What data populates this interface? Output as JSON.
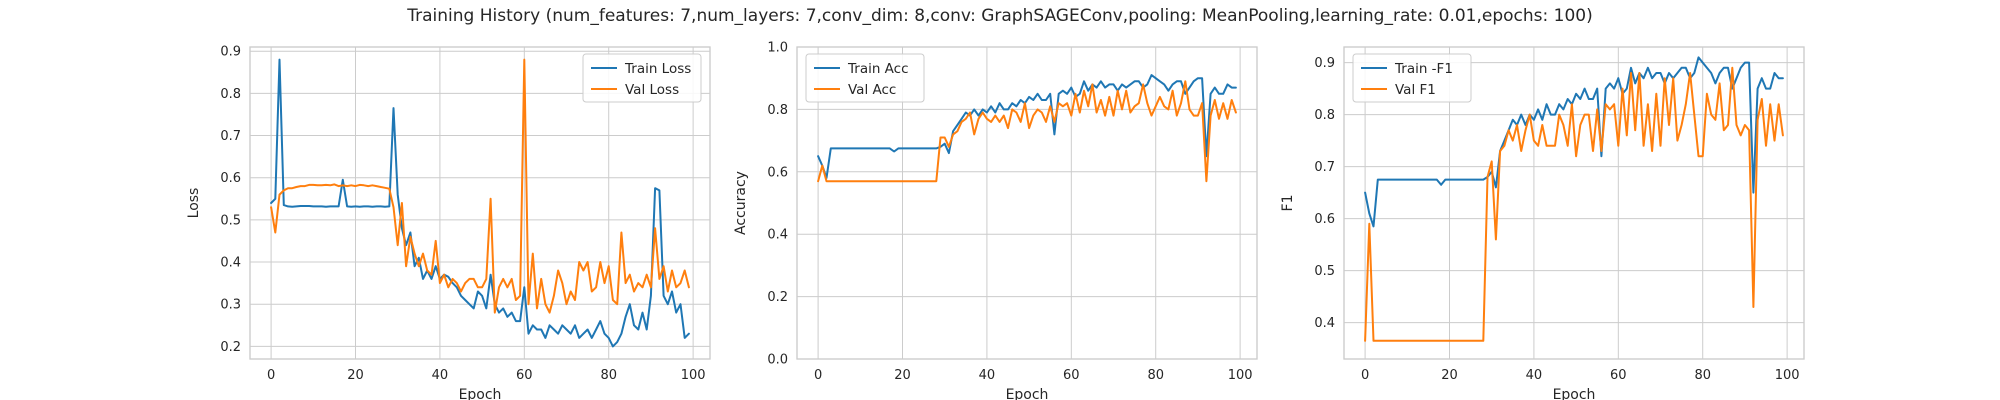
{
  "suptitle": "Training History (num_features: 7,num_layers: 7,conv_dim: 8,conv: GraphSAGEConv,pooling: MeanPooling,learning_rate: 0.01,epochs: 100)",
  "colors": {
    "blue": "#1f77b4",
    "orange": "#ff7f0e",
    "grid": "#cccccc"
  },
  "chart_data": [
    {
      "type": "line",
      "title": "",
      "xlabel": "Epoch",
      "ylabel": "Loss",
      "xlim": [
        -5,
        104
      ],
      "ylim": [
        0.17,
        0.91
      ],
      "xticks": [
        0,
        20,
        40,
        60,
        80,
        100
      ],
      "yticks": [
        0.2,
        0.3,
        0.4,
        0.5,
        0.6,
        0.7,
        0.8,
        0.9
      ],
      "tick_decimals": 1,
      "legend_loc": "upper right",
      "series": [
        {
          "name": "Train Loss",
          "color": "#1f77b4",
          "values": [
            0.54,
            0.55,
            0.88,
            0.535,
            0.532,
            0.531,
            0.532,
            0.533,
            0.533,
            0.533,
            0.532,
            0.532,
            0.532,
            0.531,
            0.532,
            0.532,
            0.532,
            0.595,
            0.532,
            0.531,
            0.532,
            0.531,
            0.532,
            0.532,
            0.531,
            0.532,
            0.532,
            0.531,
            0.532,
            0.765,
            0.56,
            0.48,
            0.44,
            0.47,
            0.39,
            0.41,
            0.36,
            0.38,
            0.36,
            0.39,
            0.36,
            0.37,
            0.365,
            0.35,
            0.34,
            0.32,
            0.31,
            0.3,
            0.29,
            0.33,
            0.32,
            0.29,
            0.37,
            0.3,
            0.28,
            0.29,
            0.27,
            0.28,
            0.26,
            0.26,
            0.34,
            0.23,
            0.25,
            0.24,
            0.24,
            0.22,
            0.25,
            0.24,
            0.23,
            0.25,
            0.24,
            0.23,
            0.25,
            0.22,
            0.23,
            0.24,
            0.22,
            0.24,
            0.26,
            0.23,
            0.22,
            0.2,
            0.21,
            0.23,
            0.27,
            0.3,
            0.25,
            0.24,
            0.28,
            0.24,
            0.32,
            0.575,
            0.57,
            0.32,
            0.3,
            0.33,
            0.28,
            0.3,
            0.22,
            0.23
          ]
        },
        {
          "name": "Val Loss",
          "color": "#ff7f0e",
          "values": [
            0.53,
            0.47,
            0.56,
            0.57,
            0.575,
            0.575,
            0.578,
            0.58,
            0.58,
            0.583,
            0.583,
            0.582,
            0.582,
            0.583,
            0.582,
            0.584,
            0.58,
            0.582,
            0.58,
            0.582,
            0.58,
            0.583,
            0.582,
            0.58,
            0.582,
            0.58,
            0.578,
            0.576,
            0.574,
            0.53,
            0.44,
            0.54,
            0.39,
            0.46,
            0.42,
            0.39,
            0.42,
            0.38,
            0.37,
            0.45,
            0.35,
            0.37,
            0.34,
            0.36,
            0.35,
            0.33,
            0.35,
            0.36,
            0.36,
            0.34,
            0.34,
            0.36,
            0.55,
            0.28,
            0.34,
            0.36,
            0.34,
            0.36,
            0.31,
            0.32,
            0.88,
            0.3,
            0.42,
            0.29,
            0.36,
            0.3,
            0.28,
            0.32,
            0.38,
            0.35,
            0.3,
            0.33,
            0.31,
            0.4,
            0.38,
            0.4,
            0.33,
            0.34,
            0.4,
            0.35,
            0.39,
            0.31,
            0.3,
            0.47,
            0.35,
            0.37,
            0.33,
            0.35,
            0.34,
            0.37,
            0.34,
            0.48,
            0.36,
            0.39,
            0.33,
            0.38,
            0.34,
            0.35,
            0.38,
            0.34
          ]
        }
      ]
    },
    {
      "type": "line",
      "title": "",
      "xlabel": "Epoch",
      "ylabel": "Accuracy",
      "xlim": [
        -5,
        104
      ],
      "ylim": [
        0.0,
        1.0
      ],
      "xticks": [
        0,
        20,
        40,
        60,
        80,
        100
      ],
      "yticks": [
        0.0,
        0.2,
        0.4,
        0.6,
        0.8,
        1.0
      ],
      "tick_decimals": 1,
      "legend_loc": "upper left",
      "series": [
        {
          "name": "Train Acc",
          "color": "#1f77b4",
          "values": [
            0.65,
            0.62,
            0.58,
            0.675,
            0.675,
            0.675,
            0.675,
            0.675,
            0.675,
            0.675,
            0.675,
            0.675,
            0.675,
            0.675,
            0.675,
            0.675,
            0.675,
            0.675,
            0.665,
            0.675,
            0.675,
            0.675,
            0.675,
            0.675,
            0.675,
            0.675,
            0.675,
            0.675,
            0.675,
            0.68,
            0.69,
            0.66,
            0.73,
            0.75,
            0.77,
            0.79,
            0.78,
            0.8,
            0.78,
            0.8,
            0.79,
            0.81,
            0.79,
            0.82,
            0.8,
            0.8,
            0.82,
            0.81,
            0.83,
            0.82,
            0.84,
            0.83,
            0.85,
            0.83,
            0.83,
            0.85,
            0.72,
            0.85,
            0.86,
            0.85,
            0.87,
            0.84,
            0.85,
            0.89,
            0.86,
            0.88,
            0.87,
            0.89,
            0.87,
            0.88,
            0.88,
            0.86,
            0.88,
            0.87,
            0.88,
            0.89,
            0.89,
            0.87,
            0.88,
            0.91,
            0.9,
            0.89,
            0.88,
            0.86,
            0.88,
            0.89,
            0.89,
            0.85,
            0.87,
            0.89,
            0.9,
            0.9,
            0.65,
            0.85,
            0.87,
            0.85,
            0.85,
            0.88,
            0.87,
            0.87
          ]
        },
        {
          "name": "Val Acc",
          "color": "#ff7f0e",
          "values": [
            0.57,
            0.62,
            0.57,
            0.57,
            0.57,
            0.57,
            0.57,
            0.57,
            0.57,
            0.57,
            0.57,
            0.57,
            0.57,
            0.57,
            0.57,
            0.57,
            0.57,
            0.57,
            0.57,
            0.57,
            0.57,
            0.57,
            0.57,
            0.57,
            0.57,
            0.57,
            0.57,
            0.57,
            0.57,
            0.71,
            0.71,
            0.68,
            0.72,
            0.73,
            0.76,
            0.77,
            0.79,
            0.72,
            0.77,
            0.79,
            0.77,
            0.76,
            0.78,
            0.76,
            0.78,
            0.74,
            0.8,
            0.79,
            0.76,
            0.82,
            0.74,
            0.78,
            0.8,
            0.79,
            0.76,
            0.81,
            0.76,
            0.82,
            0.81,
            0.82,
            0.78,
            0.85,
            0.79,
            0.86,
            0.81,
            0.88,
            0.79,
            0.83,
            0.78,
            0.84,
            0.78,
            0.86,
            0.8,
            0.86,
            0.79,
            0.81,
            0.82,
            0.88,
            0.82,
            0.78,
            0.81,
            0.84,
            0.81,
            0.8,
            0.86,
            0.78,
            0.82,
            0.89,
            0.8,
            0.78,
            0.78,
            0.82,
            0.57,
            0.78,
            0.83,
            0.77,
            0.82,
            0.77,
            0.83,
            0.79
          ]
        }
      ]
    },
    {
      "type": "line",
      "title": "",
      "xlabel": "Epoch",
      "ylabel": "F1",
      "xlim": [
        -5,
        104
      ],
      "ylim": [
        0.33,
        0.93
      ],
      "xticks": [
        0,
        20,
        40,
        60,
        80,
        100
      ],
      "yticks": [
        0.4,
        0.5,
        0.6,
        0.7,
        0.8,
        0.9
      ],
      "tick_decimals": 1,
      "legend_loc": "upper left",
      "series": [
        {
          "name": "Train -F1",
          "color": "#1f77b4",
          "values": [
            0.65,
            0.61,
            0.585,
            0.675,
            0.675,
            0.675,
            0.675,
            0.675,
            0.675,
            0.675,
            0.675,
            0.675,
            0.675,
            0.675,
            0.675,
            0.675,
            0.675,
            0.675,
            0.665,
            0.675,
            0.675,
            0.675,
            0.675,
            0.675,
            0.675,
            0.675,
            0.675,
            0.675,
            0.675,
            0.68,
            0.69,
            0.66,
            0.73,
            0.75,
            0.77,
            0.79,
            0.78,
            0.8,
            0.78,
            0.8,
            0.79,
            0.81,
            0.79,
            0.82,
            0.8,
            0.8,
            0.82,
            0.81,
            0.83,
            0.82,
            0.84,
            0.83,
            0.85,
            0.83,
            0.83,
            0.85,
            0.72,
            0.85,
            0.86,
            0.85,
            0.87,
            0.84,
            0.85,
            0.89,
            0.86,
            0.88,
            0.87,
            0.89,
            0.87,
            0.88,
            0.88,
            0.86,
            0.88,
            0.87,
            0.88,
            0.89,
            0.89,
            0.87,
            0.88,
            0.91,
            0.9,
            0.89,
            0.88,
            0.86,
            0.88,
            0.89,
            0.89,
            0.85,
            0.87,
            0.89,
            0.9,
            0.9,
            0.65,
            0.85,
            0.87,
            0.85,
            0.85,
            0.88,
            0.87,
            0.87
          ]
        },
        {
          "name": "Val F1",
          "color": "#ff7f0e",
          "values": [
            0.365,
            0.59,
            0.365,
            0.365,
            0.365,
            0.365,
            0.365,
            0.365,
            0.365,
            0.365,
            0.365,
            0.365,
            0.365,
            0.365,
            0.365,
            0.365,
            0.365,
            0.365,
            0.365,
            0.365,
            0.365,
            0.365,
            0.365,
            0.365,
            0.365,
            0.365,
            0.365,
            0.365,
            0.365,
            0.68,
            0.71,
            0.56,
            0.73,
            0.74,
            0.77,
            0.75,
            0.78,
            0.73,
            0.77,
            0.8,
            0.75,
            0.74,
            0.78,
            0.74,
            0.74,
            0.74,
            0.8,
            0.78,
            0.74,
            0.82,
            0.72,
            0.78,
            0.8,
            0.8,
            0.73,
            0.81,
            0.73,
            0.82,
            0.81,
            0.82,
            0.74,
            0.85,
            0.76,
            0.88,
            0.77,
            0.88,
            0.74,
            0.82,
            0.73,
            0.84,
            0.74,
            0.87,
            0.78,
            0.87,
            0.75,
            0.78,
            0.82,
            0.88,
            0.8,
            0.72,
            0.72,
            0.84,
            0.8,
            0.79,
            0.86,
            0.77,
            0.78,
            0.89,
            0.78,
            0.76,
            0.78,
            0.77,
            0.43,
            0.79,
            0.83,
            0.74,
            0.82,
            0.75,
            0.82,
            0.76
          ]
        }
      ]
    }
  ]
}
